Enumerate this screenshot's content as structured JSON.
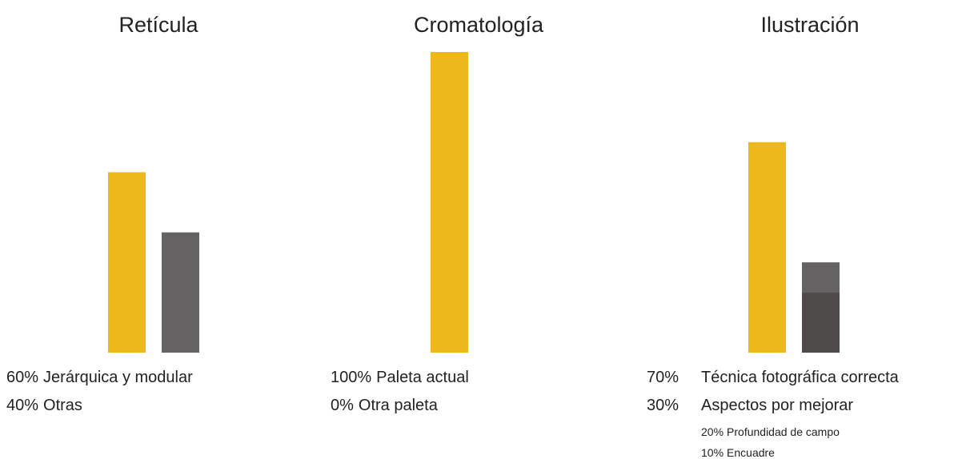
{
  "chart_data": [
    {
      "type": "bar",
      "title": "Retícula",
      "ylim": [
        0,
        100
      ],
      "series": [
        {
          "name": "Jerárquica y modular",
          "color": "#ecb81c",
          "values": [
            60
          ],
          "value_labels": [
            "60%"
          ]
        },
        {
          "name": "Otras",
          "color": "#656263",
          "values": [
            40
          ],
          "value_labels": [
            "40%"
          ]
        }
      ]
    },
    {
      "type": "bar",
      "title": "Cromatología",
      "ylim": [
        0,
        100
      ],
      "series": [
        {
          "name": "Paleta actual",
          "color": "#ecb81c",
          "values": [
            100
          ],
          "value_labels": [
            "100%"
          ]
        },
        {
          "name": "Otra paleta",
          "color": "#656263",
          "values": [
            0
          ],
          "value_labels": [
            "0%"
          ]
        }
      ]
    },
    {
      "type": "bar",
      "title": "Ilustración",
      "ylim": [
        0,
        100
      ],
      "series": [
        {
          "name": "Técnica fotográfica correcta",
          "color": "#ecb81c",
          "values": [
            70
          ],
          "value_labels": [
            "70%"
          ]
        },
        {
          "name": "Aspectos por mejorar",
          "color": "#656263",
          "values": [
            30
          ],
          "value_labels": [
            "30%"
          ],
          "parts": [
            {
              "name": "Profundidad de campo",
              "color": "#4f4a4a",
              "values": [
                20
              ],
              "value_labels": [
                "20%"
              ]
            },
            {
              "name": "Encuadre",
              "color": "#656263",
              "values": [
                10
              ],
              "value_labels": [
                "10%"
              ]
            }
          ]
        }
      ]
    }
  ]
}
